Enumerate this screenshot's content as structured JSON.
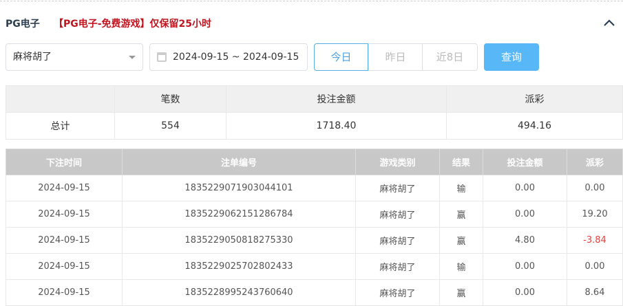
{
  "header": {
    "title": "PG电子",
    "notice": "【PG电子-免费游戏】仅保留25小时",
    "collapse_icon": "chevron-up-icon"
  },
  "filters": {
    "game_select": "麻将胡了",
    "date_range": "2024-09-15 ~ 2024-09-15",
    "ranges": [
      "今日",
      "昨日",
      "近8日"
    ],
    "active_range": "今日",
    "query_label": "查询"
  },
  "summary": {
    "headers": [
      "",
      "笔数",
      "投注金额",
      "派彩"
    ],
    "row": [
      "总计",
      "554",
      "1718.40",
      "494.16"
    ]
  },
  "records": {
    "headers": [
      "下注时间",
      "注单编号",
      "游戏类别",
      "结果",
      "投注金额",
      "派彩"
    ],
    "rows": [
      [
        "2024-09-15",
        "1835229071903044101",
        "麻将胡了",
        "输",
        "0.00",
        "0.00"
      ],
      [
        "2024-09-15",
        "1835229062151286784",
        "麻将胡了",
        "赢",
        "0.00",
        "19.20"
      ],
      [
        "2024-09-15",
        "1835229050818275330",
        "麻将胡了",
        "赢",
        "4.80",
        "-3.84"
      ],
      [
        "2024-09-15",
        "1835229025702802433",
        "麻将胡了",
        "输",
        "0.00",
        "0.00"
      ],
      [
        "2024-09-15",
        "1835228995243760640",
        "麻将胡了",
        "赢",
        "0.00",
        "8.64"
      ]
    ]
  },
  "colors": {
    "accent": "#58b7f6",
    "notice": "#c0141e",
    "negative": "#e8413c"
  }
}
